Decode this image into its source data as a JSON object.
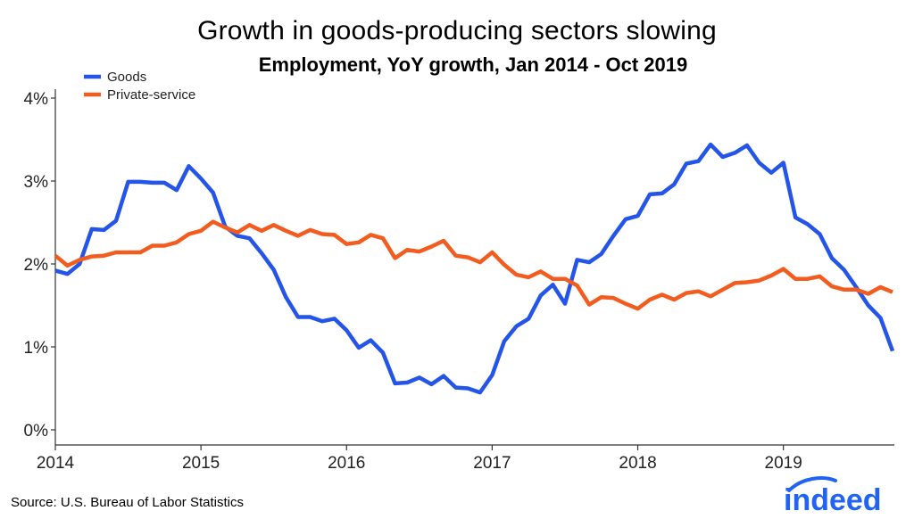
{
  "chart_data": {
    "type": "line",
    "title": "Growth in goods-producing sectors slowing",
    "subtitle": "Employment, YoY growth, Jan 2014 - Oct 2019",
    "xlabel": "",
    "ylabel": "",
    "xlim": [
      2014.0,
      2019.75
    ],
    "ylim": [
      0,
      4
    ],
    "x_ticks": [
      {
        "value": 2014,
        "label": "2014"
      },
      {
        "value": 2015,
        "label": "2015"
      },
      {
        "value": 2016,
        "label": "2016"
      },
      {
        "value": 2017,
        "label": "2017"
      },
      {
        "value": 2018,
        "label": "2018"
      },
      {
        "value": 2019,
        "label": "2019"
      }
    ],
    "y_ticks": [
      {
        "value": 0,
        "label": "0%"
      },
      {
        "value": 1,
        "label": "1%"
      },
      {
        "value": 2,
        "label": "2%"
      },
      {
        "value": 3,
        "label": "3%"
      },
      {
        "value": 4,
        "label": "4%"
      }
    ],
    "legend_position": "top-left",
    "series": [
      {
        "name": "Goods",
        "color": "#2455e8",
        "x_start": 2014.0,
        "x_step_months": 1,
        "values": [
          1.92,
          1.88,
          2.0,
          2.42,
          2.41,
          2.52,
          2.99,
          2.99,
          2.98,
          2.98,
          2.89,
          3.18,
          3.03,
          2.86,
          2.45,
          2.34,
          2.31,
          2.13,
          1.93,
          1.6,
          1.36,
          1.36,
          1.31,
          1.34,
          1.2,
          0.99,
          1.08,
          0.93,
          0.56,
          0.57,
          0.63,
          0.55,
          0.65,
          0.51,
          0.5,
          0.45,
          0.66,
          1.07,
          1.25,
          1.34,
          1.62,
          1.75,
          1.52,
          2.05,
          2.02,
          2.12,
          2.34,
          2.54,
          2.58,
          2.84,
          2.85,
          2.96,
          3.21,
          3.24,
          3.44,
          3.29,
          3.34,
          3.43,
          3.22,
          3.1,
          3.22,
          2.56,
          2.48,
          2.36,
          2.07,
          1.93,
          1.72,
          1.5,
          1.35,
          0.95
        ]
      },
      {
        "name": "Private-service",
        "color": "#f25c1e",
        "x_start": 2014.0,
        "x_step_months": 1,
        "values": [
          2.1,
          1.98,
          2.05,
          2.09,
          2.1,
          2.14,
          2.14,
          2.14,
          2.22,
          2.22,
          2.26,
          2.36,
          2.4,
          2.51,
          2.44,
          2.38,
          2.47,
          2.4,
          2.47,
          2.4,
          2.34,
          2.41,
          2.36,
          2.35,
          2.24,
          2.26,
          2.35,
          2.31,
          2.07,
          2.17,
          2.15,
          2.21,
          2.28,
          2.1,
          2.08,
          2.02,
          2.14,
          1.99,
          1.87,
          1.84,
          1.91,
          1.82,
          1.82,
          1.74,
          1.51,
          1.6,
          1.59,
          1.52,
          1.46,
          1.57,
          1.63,
          1.57,
          1.65,
          1.67,
          1.61,
          1.69,
          1.77,
          1.78,
          1.8,
          1.86,
          1.94,
          1.82,
          1.82,
          1.85,
          1.73,
          1.69,
          1.69,
          1.64,
          1.72,
          1.66
        ]
      }
    ]
  },
  "source": "Source: U.S. Bureau of Labor Statistics",
  "brand": {
    "logo_text": "indeed",
    "color": "#2164f3"
  }
}
